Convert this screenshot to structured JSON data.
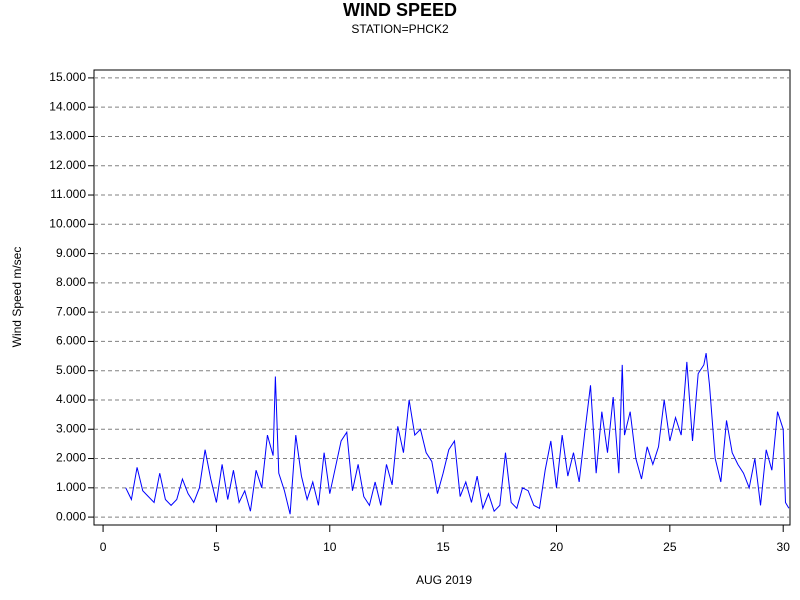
{
  "chart_data": {
    "type": "line",
    "title": "WIND SPEED",
    "subtitle": "STATION=PHCK2",
    "x_label": "AUG 2019",
    "y_label": "Wind Speed m/sec",
    "xlim": [
      -0.4,
      30.3
    ],
    "ylim": [
      -0.27,
      15.27
    ],
    "xticks": [
      0,
      5,
      10,
      15,
      20,
      25,
      30
    ],
    "yticks": [
      {
        "value": 0,
        "label": "0.000"
      },
      {
        "value": 1,
        "label": "1.000"
      },
      {
        "value": 2,
        "label": "2.000"
      },
      {
        "value": 3,
        "label": "3.000"
      },
      {
        "value": 4,
        "label": "4.000"
      },
      {
        "value": 5,
        "label": "5.000"
      },
      {
        "value": 6,
        "label": "6.000"
      },
      {
        "value": 7,
        "label": "7.000"
      },
      {
        "value": 8,
        "label": "8.000"
      },
      {
        "value": 9,
        "label": "9.000"
      },
      {
        "value": 10,
        "label": "10.000"
      },
      {
        "value": 11,
        "label": "11.000"
      },
      {
        "value": 12,
        "label": "12.000"
      },
      {
        "value": 13,
        "label": "13.000"
      },
      {
        "value": 14,
        "label": "14.000"
      },
      {
        "value": 15,
        "label": "15.000"
      }
    ],
    "grid": true,
    "x": [
      1.0,
      1.25,
      1.5,
      1.75,
      2.0,
      2.25,
      2.5,
      2.75,
      3.0,
      3.25,
      3.5,
      3.75,
      4.0,
      4.25,
      4.5,
      4.75,
      5.0,
      5.25,
      5.5,
      5.75,
      6.0,
      6.25,
      6.5,
      6.75,
      7.0,
      7.25,
      7.5,
      7.6,
      7.75,
      8.0,
      8.25,
      8.5,
      8.75,
      9.0,
      9.25,
      9.5,
      9.75,
      10.0,
      10.25,
      10.5,
      10.75,
      11.0,
      11.25,
      11.5,
      11.75,
      12.0,
      12.25,
      12.5,
      12.75,
      13.0,
      13.25,
      13.5,
      13.75,
      14.0,
      14.25,
      14.5,
      14.75,
      15.0,
      15.25,
      15.5,
      15.75,
      16.0,
      16.25,
      16.5,
      16.75,
      17.0,
      17.25,
      17.5,
      17.75,
      18.0,
      18.25,
      18.5,
      18.75,
      19.0,
      19.25,
      19.5,
      19.75,
      20.0,
      20.25,
      20.5,
      20.75,
      21.0,
      21.25,
      21.5,
      21.75,
      22.0,
      22.25,
      22.5,
      22.75,
      22.9,
      23.0,
      23.25,
      23.5,
      23.75,
      24.0,
      24.25,
      24.5,
      24.75,
      25.0,
      25.25,
      25.5,
      25.75,
      26.0,
      26.25,
      26.5,
      26.6,
      26.75,
      27.0,
      27.25,
      27.5,
      27.75,
      28.0,
      28.25,
      28.5,
      28.75,
      29.0,
      29.25,
      29.5,
      29.75,
      30.0,
      30.1,
      30.25
    ],
    "series": [
      {
        "name": "Wind Speed",
        "color": "#0000ff",
        "values": [
          1.0,
          0.6,
          1.7,
          0.9,
          0.7,
          0.5,
          1.5,
          0.6,
          0.4,
          0.6,
          1.3,
          0.8,
          0.5,
          1.0,
          2.3,
          1.3,
          0.5,
          1.8,
          0.6,
          1.6,
          0.5,
          0.9,
          0.2,
          1.6,
          1.0,
          2.8,
          2.1,
          4.8,
          1.5,
          0.9,
          0.1,
          2.8,
          1.4,
          0.6,
          1.2,
          0.4,
          2.2,
          0.8,
          1.7,
          2.6,
          2.9,
          0.9,
          1.8,
          0.7,
          0.4,
          1.2,
          0.4,
          1.8,
          1.1,
          3.1,
          2.2,
          4.0,
          2.8,
          3.0,
          2.2,
          1.9,
          0.8,
          1.5,
          2.3,
          2.6,
          0.7,
          1.2,
          0.5,
          1.4,
          0.3,
          0.8,
          0.2,
          0.4,
          2.2,
          0.5,
          0.3,
          1.0,
          0.9,
          0.4,
          0.3,
          1.6,
          2.6,
          1.0,
          2.8,
          1.4,
          2.2,
          1.2,
          2.9,
          4.5,
          1.5,
          3.6,
          2.2,
          4.1,
          1.5,
          5.2,
          2.8,
          3.6,
          2.0,
          1.3,
          2.4,
          1.8,
          2.4,
          4.0,
          2.6,
          3.4,
          2.8,
          5.3,
          2.6,
          4.9,
          5.2,
          5.6,
          4.5,
          2.0,
          1.2,
          3.3,
          2.2,
          1.8,
          1.5,
          1.0,
          2.0,
          0.4,
          2.3,
          1.6,
          3.6,
          3.0,
          0.5,
          0.3
        ]
      }
    ]
  }
}
